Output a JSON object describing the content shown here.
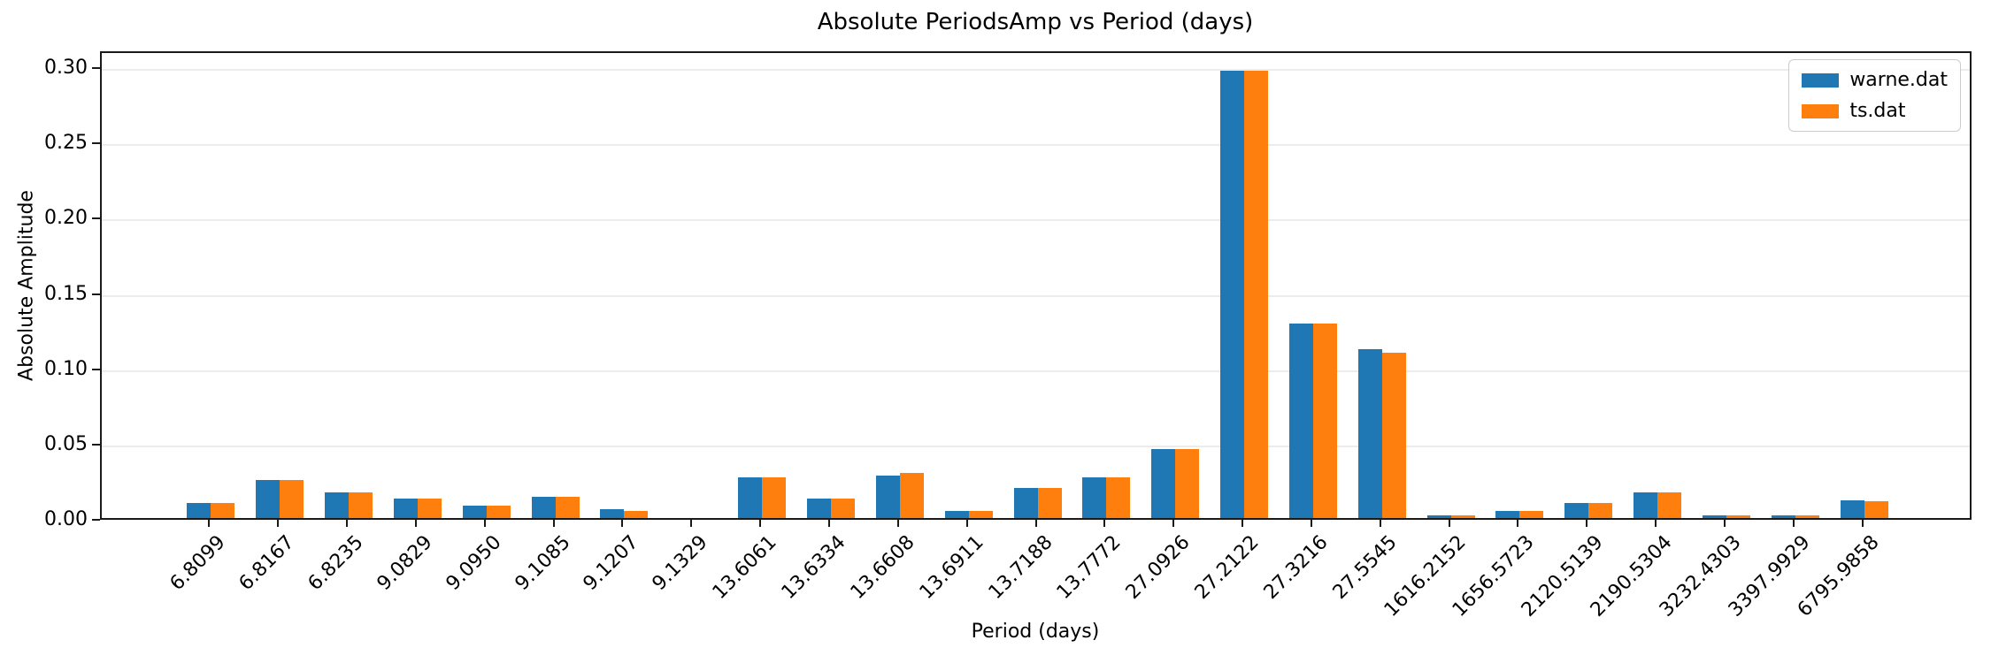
{
  "chart_data": {
    "type": "bar",
    "title": "Absolute PeriodsAmp vs Period (days)",
    "xlabel": "Period (days)",
    "ylabel": "Absolute Amplitude",
    "categories": [
      "6.8099",
      "6.8167",
      "6.8235",
      "9.0829",
      "9.0950",
      "9.1085",
      "9.1207",
      "9.1329",
      "13.6061",
      "13.6334",
      "13.6608",
      "13.6911",
      "13.7188",
      "13.7772",
      "27.0926",
      "27.2122",
      "27.3216",
      "27.5545",
      "1616.2152",
      "1656.5723",
      "2120.5139",
      "2190.5304",
      "3232.4303",
      "3397.9929",
      "6795.9858"
    ],
    "series": [
      {
        "name": "warne.dat",
        "color": "#1f77b4",
        "values": [
          0.01,
          0.025,
          0.017,
          0.013,
          0.008,
          0.014,
          0.006,
          0.0,
          0.027,
          0.013,
          0.028,
          0.005,
          0.02,
          0.027,
          0.046,
          0.297,
          0.129,
          0.112,
          0.002,
          0.005,
          0.01,
          0.017,
          0.002,
          0.002,
          0.012
        ]
      },
      {
        "name": "ts.dat",
        "color": "#ff7f0e",
        "values": [
          0.01,
          0.025,
          0.017,
          0.013,
          0.008,
          0.014,
          0.005,
          0.0,
          0.027,
          0.013,
          0.03,
          0.005,
          0.02,
          0.027,
          0.046,
          0.297,
          0.129,
          0.11,
          0.002,
          0.005,
          0.01,
          0.017,
          0.002,
          0.0015,
          0.011
        ]
      }
    ],
    "yticks": [
      "0.00",
      "0.05",
      "0.10",
      "0.15",
      "0.20",
      "0.25",
      "0.30"
    ],
    "ylim": [
      0,
      0.3113
    ],
    "grid": true,
    "legend_position": "upper right"
  }
}
